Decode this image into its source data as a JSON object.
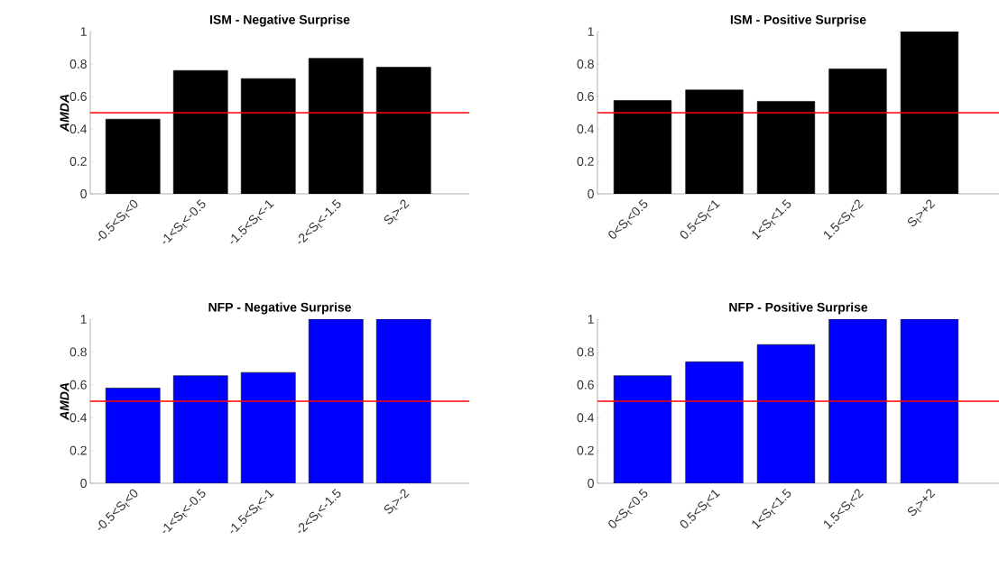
{
  "chart_data": [
    {
      "type": "bar",
      "title": "ISM - Negative Surprise",
      "ylabel": "AMDA",
      "categories": [
        "-0.5<S$_{t}$<0",
        "-1<S$_{t}$<-0.5",
        "-1.5<S$_{t}$<-1",
        "-2<S$_{t}$<-1.5",
        "S$_{t}$>-2"
      ],
      "values": [
        0.46,
        0.76,
        0.71,
        0.835,
        0.78
      ],
      "color": "#000000",
      "ylim": [
        0,
        1
      ],
      "yticks": [
        0,
        0.2,
        0.4,
        0.6,
        0.8,
        1
      ],
      "grid": false,
      "ref_lines": [
        {
          "axis": "y",
          "value": 0.5,
          "color": "#ff0000"
        }
      ]
    },
    {
      "type": "bar",
      "title": "ISM - Positive Surprise",
      "categories": [
        "0<S$_{t}$<0.5",
        "0.5<S$_{t}$<1",
        "1<S$_{t}$<1.5",
        "1.5<S$_{t}$<2",
        "S$_{t}$>+2"
      ],
      "values": [
        0.575,
        0.64,
        0.57,
        0.77,
        1.0
      ],
      "color": "#000000",
      "ylim": [
        0,
        1
      ],
      "yticks": [
        0,
        0.2,
        0.4,
        0.6,
        0.8,
        1
      ],
      "grid": false,
      "ref_lines": [
        {
          "axis": "y",
          "value": 0.5,
          "color": "#ff0000"
        }
      ]
    },
    {
      "type": "bar",
      "title": "NFP - Negative Surprise",
      "ylabel": "AMDA",
      "categories": [
        "-0.5<S$_{t}$<0",
        "-1<S$_{t}$<-0.5",
        "-1.5<S$_{t}$<-1",
        "-2<S$_{t}$<-1.5",
        "S$_{t}$>-2"
      ],
      "values": [
        0.58,
        0.655,
        0.675,
        1.0,
        1.0
      ],
      "color": "#0000ff",
      "ylim": [
        0,
        1
      ],
      "yticks": [
        0,
        0.2,
        0.4,
        0.6,
        0.8,
        1
      ],
      "grid": false,
      "ref_lines": [
        {
          "axis": "y",
          "value": 0.5,
          "color": "#ff0000"
        }
      ]
    },
    {
      "type": "bar",
      "title": "NFP - Positive Surprise",
      "categories": [
        "0<S$_{t}$<0.5",
        "0.5<S$_{t}$<1",
        "1<S$_{t}$<1.5",
        "1.5<S$_{t}$<2",
        "S$_{t}$>+2"
      ],
      "values": [
        0.655,
        0.74,
        0.845,
        1.0,
        1.0
      ],
      "color": "#0000ff",
      "ylim": [
        0,
        1
      ],
      "yticks": [
        0,
        0.2,
        0.4,
        0.6,
        0.8,
        1
      ],
      "grid": false,
      "ref_lines": [
        {
          "axis": "y",
          "value": 0.5,
          "color": "#ff0000"
        }
      ]
    }
  ]
}
